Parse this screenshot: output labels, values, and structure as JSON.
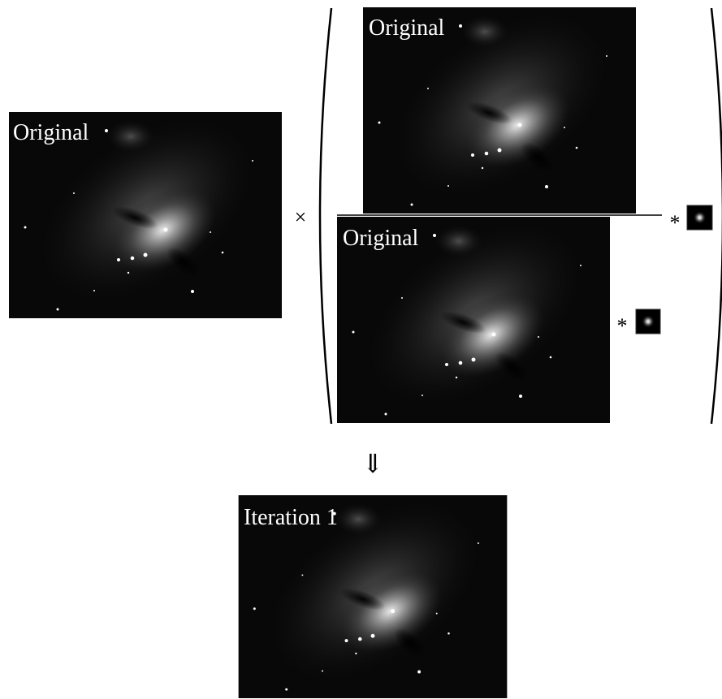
{
  "panels": [
    {
      "label": "Original"
    },
    {
      "label": "Original"
    },
    {
      "label": "Original"
    },
    {
      "label": "Iteration 1"
    }
  ],
  "operators": {
    "multiply": "×",
    "convolve_top": "*",
    "convolve_bottom": "*",
    "arrow": "⇓"
  }
}
